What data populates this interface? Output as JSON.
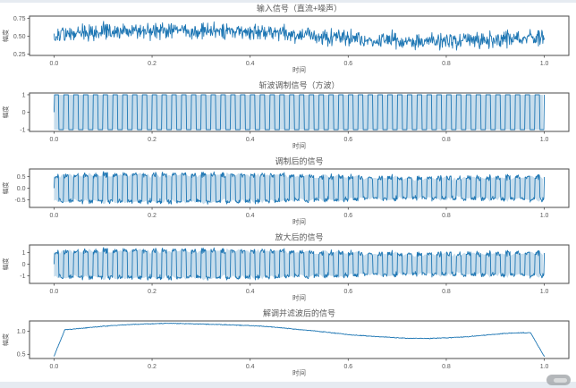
{
  "page": {
    "background_color": "#e6ebf1",
    "figure_background_color": "#ffffff",
    "accent_line_color": "#1f77b4",
    "spine_color": "#4a4a4a",
    "text_color": "#5a5a5a"
  },
  "watermark": {
    "shape": "pill",
    "color": "#a7abaf"
  },
  "chart_data": [
    {
      "type": "line",
      "title": "输入信号（直流+噪声）",
      "xlabel": "时间",
      "ylabel": "幅度",
      "x_ticks": [
        0.0,
        0.2,
        0.4,
        0.6,
        0.8,
        1.0
      ],
      "x_tick_labels": [
        "0.0",
        "0.2",
        "0.4",
        "0.6",
        "0.8",
        "1.0"
      ],
      "xlim": [
        -0.05,
        1.05
      ],
      "y_ticks": [
        0.25,
        0.5,
        0.75
      ],
      "y_tick_labels": [
        "0.25",
        "0.50",
        "0.75"
      ],
      "ylim": [
        0.23,
        0.78
      ],
      "grid": false,
      "legend": null,
      "line_color": "#1f77b4",
      "signal": {
        "kind": "noisy_dc",
        "description": "DC level ~0.5 with slow drift plus gaussian noise",
        "samples": 1000,
        "noise_sd": 0.055,
        "baseline_points": [
          [
            0,
            0.515
          ],
          [
            0.05,
            0.54
          ],
          [
            0.1,
            0.555
          ],
          [
            0.15,
            0.565
          ],
          [
            0.2,
            0.575
          ],
          [
            0.25,
            0.585
          ],
          [
            0.3,
            0.58
          ],
          [
            0.35,
            0.572
          ],
          [
            0.4,
            0.562
          ],
          [
            0.45,
            0.552
          ],
          [
            0.5,
            0.528
          ],
          [
            0.55,
            0.505
          ],
          [
            0.6,
            0.478
          ],
          [
            0.65,
            0.452
          ],
          [
            0.7,
            0.43
          ],
          [
            0.75,
            0.422
          ],
          [
            0.8,
            0.43
          ],
          [
            0.85,
            0.44
          ],
          [
            0.9,
            0.462
          ],
          [
            0.95,
            0.482
          ],
          [
            1,
            0.475
          ]
        ]
      }
    },
    {
      "type": "line",
      "title": "斩波调制信号（方波）",
      "xlabel": "时间",
      "ylabel": "幅度",
      "x_ticks": [
        0.0,
        0.2,
        0.4,
        0.6,
        0.8,
        1.0
      ],
      "x_tick_labels": [
        "0.0",
        "0.2",
        "0.4",
        "0.6",
        "0.8",
        "1.0"
      ],
      "xlim": [
        -0.05,
        1.05
      ],
      "y_ticks": [
        -1,
        0,
        1
      ],
      "y_tick_labels": [
        "-1",
        "0",
        "1"
      ],
      "ylim": [
        -1.1,
        1.1
      ],
      "grid": false,
      "legend": null,
      "line_color": "#1f77b4",
      "signal": {
        "kind": "square",
        "description": "±1 square-wave chopper carrier, ~50 Hz over 1 s",
        "samples": 1000,
        "freq_hz": 50,
        "amplitude": 1,
        "band_fill": true
      }
    },
    {
      "type": "line",
      "title": "调制后的信号",
      "xlabel": "时间",
      "ylabel": "幅度",
      "x_ticks": [
        0.0,
        0.2,
        0.4,
        0.6,
        0.8,
        1.0
      ],
      "x_tick_labels": [
        "0.0",
        "0.2",
        "0.4",
        "0.6",
        "0.8",
        "1.0"
      ],
      "xlim": [
        -0.05,
        1.05
      ],
      "y_ticks": [
        -0.5,
        0.0,
        0.5
      ],
      "y_tick_labels": [
        "-0.5",
        "0.0",
        "0.5"
      ],
      "ylim": [
        -0.82,
        0.82
      ],
      "grid": false,
      "legend": null,
      "line_color": "#1f77b4",
      "signal": {
        "kind": "product",
        "description": "input signal multiplied by square-wave carrier (envelope ≈ ±0.5)",
        "of": [
          "input",
          "square"
        ],
        "gain": 1,
        "band_fill": true
      }
    },
    {
      "type": "line",
      "title": "放大后的信号",
      "xlabel": "时间",
      "ylabel": "幅度",
      "x_ticks": [
        0.0,
        0.2,
        0.4,
        0.6,
        0.8,
        1.0
      ],
      "x_tick_labels": [
        "0.0",
        "0.2",
        "0.4",
        "0.6",
        "0.8",
        "1.0"
      ],
      "xlim": [
        -0.05,
        1.05
      ],
      "y_ticks": [
        -1,
        0,
        1
      ],
      "y_tick_labels": [
        "-1",
        "0",
        "1"
      ],
      "ylim": [
        -1.64,
        1.64
      ],
      "grid": false,
      "legend": null,
      "line_color": "#1f77b4",
      "signal": {
        "kind": "product",
        "description": "modulated signal amplified ×2 (envelope ≈ ±1)",
        "of": [
          "input",
          "square"
        ],
        "gain": 2,
        "band_fill": true
      }
    },
    {
      "type": "line",
      "title": "解调并滤波后的信号",
      "xlabel": "时间",
      "ylabel": "幅度",
      "x_ticks": [
        0.0,
        0.2,
        0.4,
        0.6,
        0.8,
        1.0
      ],
      "x_tick_labels": [
        "0.0",
        "0.2",
        "0.4",
        "0.6",
        "0.8",
        "1.0"
      ],
      "xlim": [
        -0.05,
        1.05
      ],
      "y_ticks": [
        0.5,
        1.0
      ],
      "y_tick_labels": [
        "0.5",
        "1.0"
      ],
      "ylim": [
        0.41,
        1.22
      ],
      "grid": false,
      "legend": null,
      "line_color": "#1f77b4",
      "signal": {
        "kind": "curve",
        "description": "demodulated + low-pass filtered output (~2× recovered DC, filter edge roll-off at both ends)",
        "samples": 1000,
        "noise_sd": 0.004,
        "points": [
          [
            0,
            0.46
          ],
          [
            0.022,
            1.03
          ],
          [
            0.05,
            1.055
          ],
          [
            0.1,
            1.105
          ],
          [
            0.15,
            1.14
          ],
          [
            0.2,
            1.16
          ],
          [
            0.24,
            1.17
          ],
          [
            0.28,
            1.16
          ],
          [
            0.32,
            1.148
          ],
          [
            0.36,
            1.135
          ],
          [
            0.4,
            1.12
          ],
          [
            0.44,
            1.095
          ],
          [
            0.48,
            1.055
          ],
          [
            0.52,
            1.015
          ],
          [
            0.56,
            0.975
          ],
          [
            0.6,
            0.925
          ],
          [
            0.64,
            0.895
          ],
          [
            0.68,
            0.87
          ],
          [
            0.72,
            0.845
          ],
          [
            0.76,
            0.843
          ],
          [
            0.8,
            0.855
          ],
          [
            0.84,
            0.878
          ],
          [
            0.88,
            0.915
          ],
          [
            0.92,
            0.952
          ],
          [
            0.95,
            0.965
          ],
          [
            0.972,
            0.965
          ],
          [
            1,
            0.45
          ]
        ]
      }
    }
  ]
}
